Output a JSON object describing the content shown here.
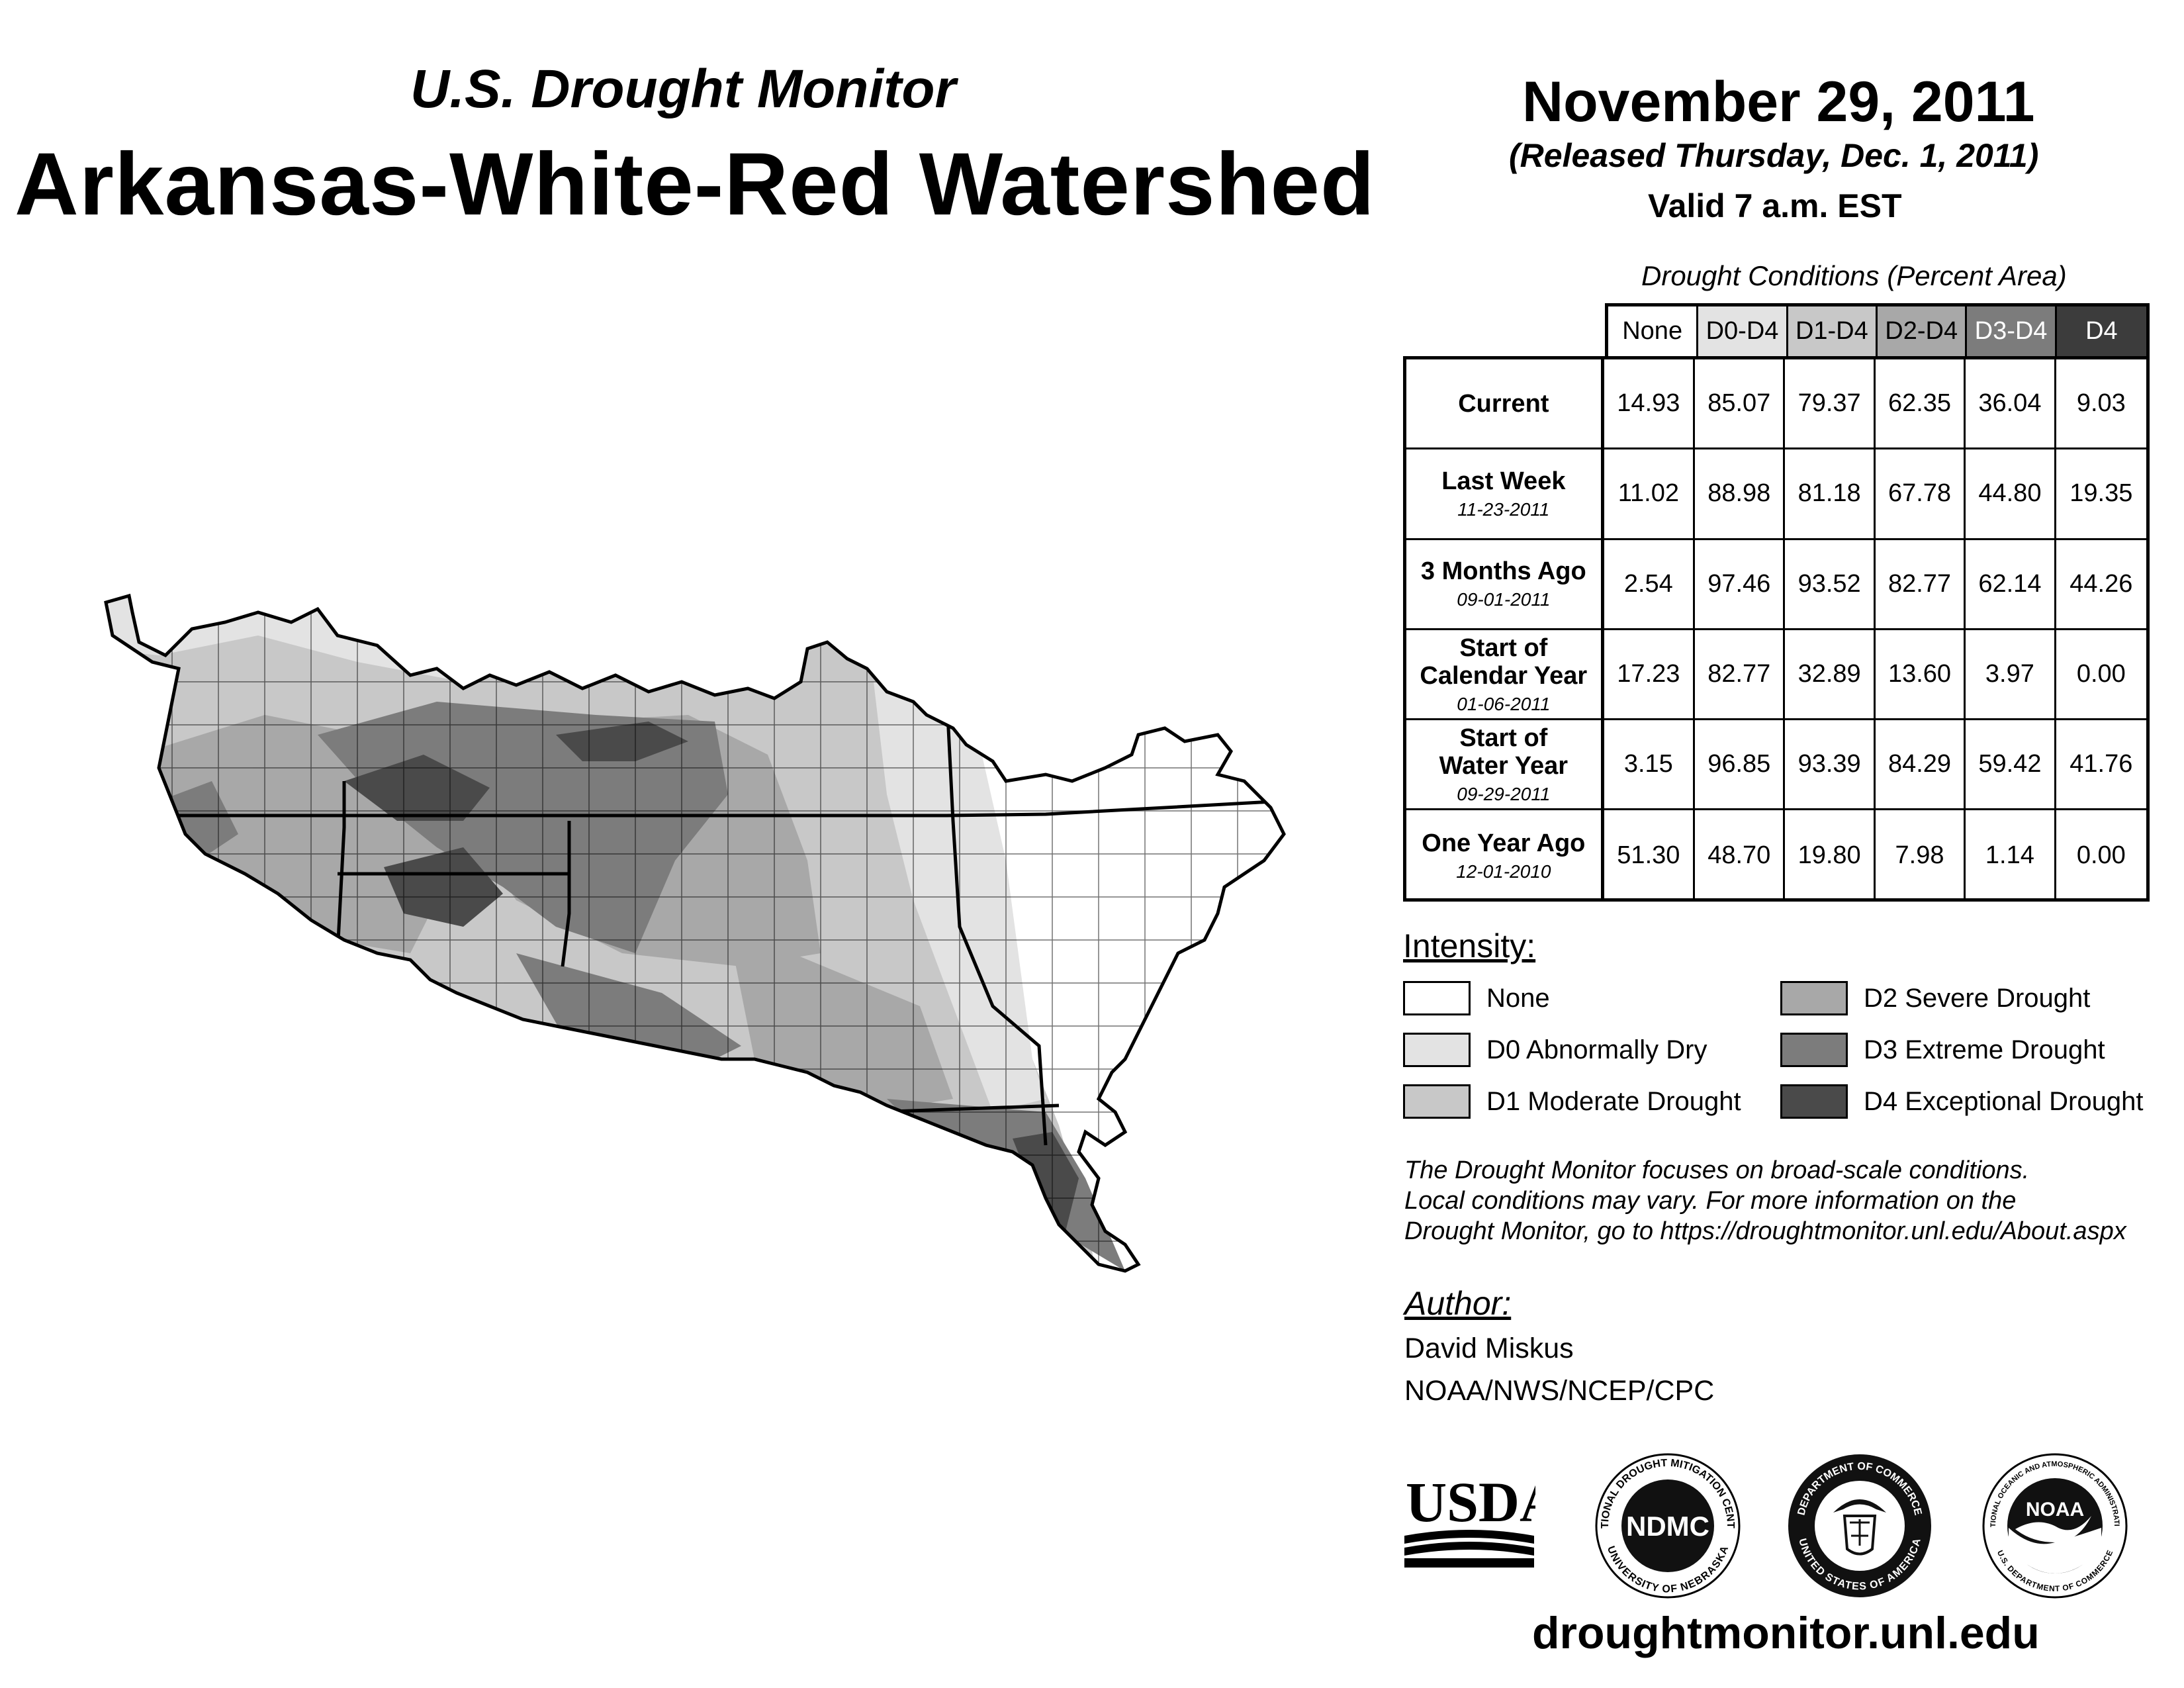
{
  "header": {
    "subtitle": "U.S. Drought Monitor",
    "title": "Arkansas-White-Red Watershed",
    "date": "November 29, 2011",
    "released": "(Released Thursday, Dec. 1, 2011)",
    "valid": "Valid 7 a.m. EST"
  },
  "table": {
    "caption": "Drought Conditions (Percent Area)",
    "columns": [
      "None",
      "D0-D4",
      "D1-D4",
      "D2-D4",
      "D3-D4",
      "D4"
    ],
    "rows": [
      {
        "label": "Current",
        "date": "",
        "values": [
          "14.93",
          "85.07",
          "79.37",
          "62.35",
          "36.04",
          "9.03"
        ]
      },
      {
        "label": "Last Week",
        "date": "11-23-2011",
        "values": [
          "11.02",
          "88.98",
          "81.18",
          "67.78",
          "44.80",
          "19.35"
        ]
      },
      {
        "label": "3 Months Ago",
        "date": "09-01-2011",
        "values": [
          "2.54",
          "97.46",
          "93.52",
          "82.77",
          "62.14",
          "44.26"
        ]
      },
      {
        "label": "Start of Calendar Year",
        "date": "01-06-2011",
        "values": [
          "17.23",
          "82.77",
          "32.89",
          "13.60",
          "3.97",
          "0.00"
        ]
      },
      {
        "label": "Start of Water Year",
        "date": "09-29-2011",
        "values": [
          "3.15",
          "96.85",
          "93.39",
          "84.29",
          "59.42",
          "41.76"
        ]
      },
      {
        "label": "One Year Ago",
        "date": "12-01-2010",
        "values": [
          "51.30",
          "48.70",
          "19.80",
          "7.98",
          "1.14",
          "0.00"
        ]
      }
    ]
  },
  "legend": {
    "title": "Intensity:",
    "items": [
      {
        "label": "None",
        "color": "#ffffff"
      },
      {
        "label": "D0 Abnormally Dry",
        "color": "#e3e3e3"
      },
      {
        "label": "D1 Moderate Drought",
        "color": "#c8c8c8"
      },
      {
        "label": "D2 Severe Drought",
        "color": "#a8a8a8"
      },
      {
        "label": "D3 Extreme Drought",
        "color": "#7c7c7c"
      },
      {
        "label": "D4 Exceptional Drought",
        "color": "#4a4a4a"
      }
    ]
  },
  "note": {
    "line1": "The Drought Monitor focuses on broad-scale conditions.",
    "line2": "Local conditions may vary. For more information on the",
    "line3": "Drought Monitor, go to https://droughtmonitor.unl.edu/About.aspx"
  },
  "author": {
    "title": "Author:",
    "name": "David Miskus",
    "org": "NOAA/NWS/NCEP/CPC"
  },
  "logos": {
    "usda": "USDA",
    "ndmc": "NDMC",
    "ndmc_top": "NATIONAL DROUGHT MITIGATION CENTER",
    "ndmc_bottom": "UNIVERSITY OF NEBRASKA",
    "doc_top": "DEPARTMENT OF COMMERCE",
    "doc_bottom": "UNITED STATES OF AMERICA",
    "noaa": "NOAA",
    "noaa_ring": "NATIONAL OCEANIC AND ATMOSPHERIC ADMINISTRATION",
    "noaa_bottom": "U.S. DEPARTMENT OF COMMERCE"
  },
  "website": "droughtmonitor.unl.edu",
  "header_colors": [
    "#ffffff",
    "#e3e3e3",
    "#c8c8c8",
    "#a8a8a8",
    "#7c7c7c",
    "#3c3c3c"
  ]
}
